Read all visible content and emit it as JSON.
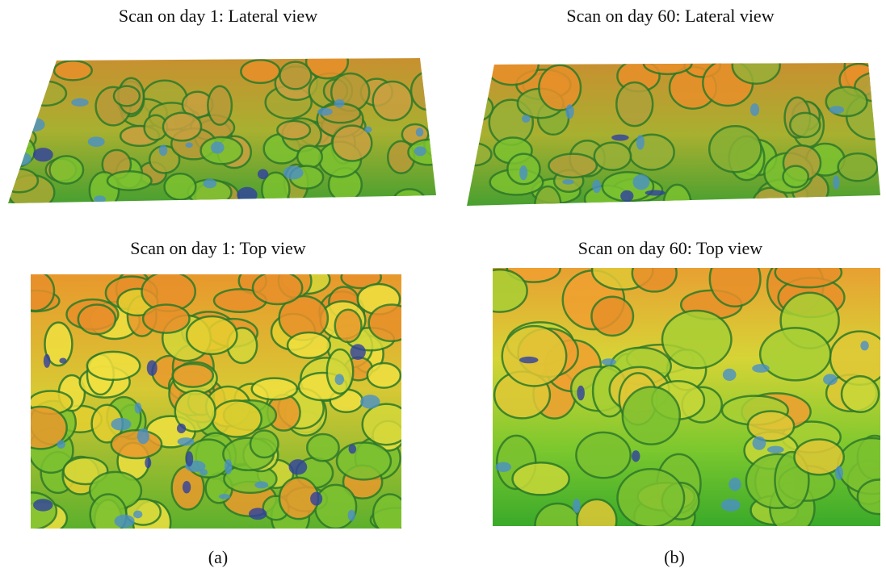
{
  "panels": [
    {
      "label": "(a)",
      "views": [
        {
          "title": "Scan on day 1: Lateral view"
        },
        {
          "title": "Scan on day 1: Top view"
        }
      ]
    },
    {
      "label": "(b)",
      "views": [
        {
          "title": "Scan on day 60: Lateral view"
        },
        {
          "title": "Scan on day 60: Top view"
        }
      ]
    }
  ]
}
